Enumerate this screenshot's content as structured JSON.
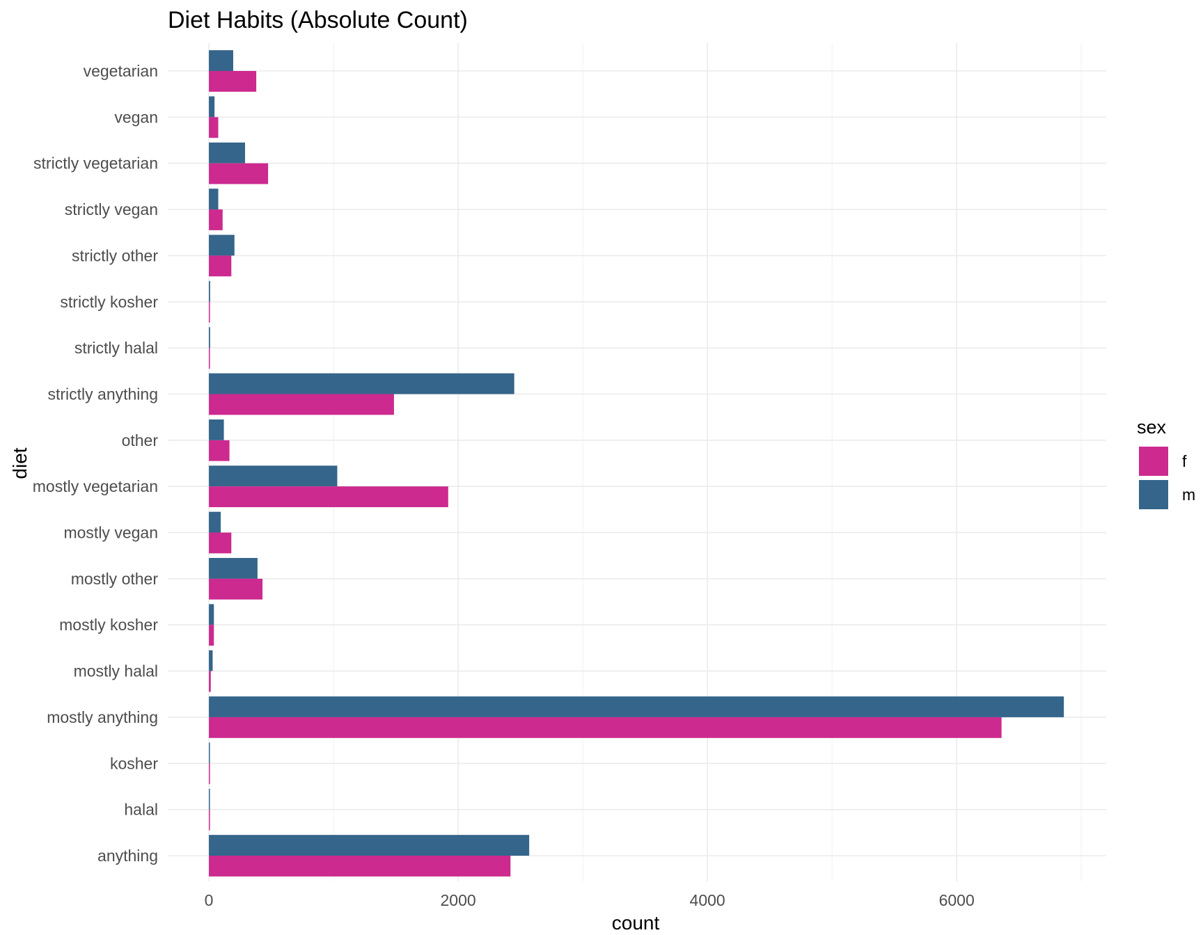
{
  "chart_data": {
    "type": "bar",
    "orientation": "horizontal",
    "title": "Diet Habits (Absolute Count)",
    "xlabel": "count",
    "ylabel": "diet",
    "xlim": [
      -330,
      7200
    ],
    "x_ticks": [
      0,
      2000,
      4000,
      6000
    ],
    "x_tick_labels": [
      "0",
      "2000",
      "4000",
      "6000"
    ],
    "grid": true,
    "legend": {
      "title": "sex",
      "position": "right"
    },
    "categories": [
      "vegetarian",
      "vegan",
      "strictly vegetarian",
      "strictly vegan",
      "strictly other",
      "strictly kosher",
      "strictly halal",
      "strictly anything",
      "other",
      "mostly vegetarian",
      "mostly vegan",
      "mostly other",
      "mostly kosher",
      "mostly halal",
      "mostly anything",
      "kosher",
      "halal",
      "anything"
    ],
    "series": [
      {
        "name": "f",
        "color": "#CC2A8F",
        "values": [
          380,
          75,
          475,
          110,
          180,
          5,
          5,
          1485,
          165,
          1920,
          180,
          430,
          40,
          15,
          6360,
          5,
          5,
          2420
        ]
      },
      {
        "name": "m",
        "color": "#35658A",
        "values": [
          195,
          45,
          290,
          75,
          205,
          10,
          10,
          2450,
          120,
          1030,
          95,
          390,
          40,
          30,
          6860,
          5,
          5,
          2570
        ]
      }
    ]
  }
}
